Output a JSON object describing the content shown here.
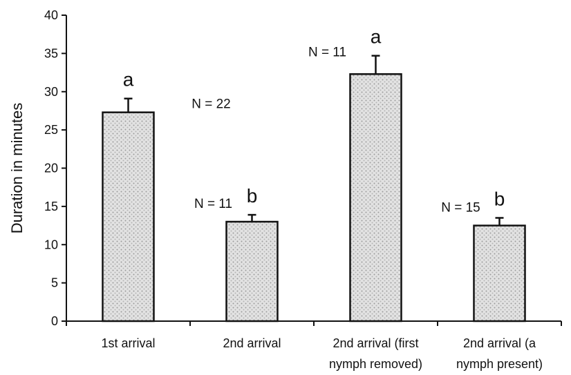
{
  "chart_data": {
    "type": "bar",
    "ylabel": "Duration in minutes",
    "xlabel": "",
    "ylim": [
      0,
      40
    ],
    "yticks": [
      0,
      5,
      10,
      15,
      20,
      25,
      30,
      35,
      40
    ],
    "grid": false,
    "categories": [
      [
        "1st arrival"
      ],
      [
        "2nd arrival"
      ],
      [
        "2nd arrival (first",
        "nymph removed)"
      ],
      [
        "2nd arrival (a",
        "nymph present)"
      ]
    ],
    "values": [
      27.3,
      13.0,
      32.3,
      12.5
    ],
    "error_upper": [
      1.8,
      0.9,
      2.4,
      1.0
    ],
    "sample_sizes": [
      "N = 22",
      "N = 11",
      "N = 11",
      "N = 15"
    ],
    "significance_letters": [
      "a",
      "b",
      "a",
      "b"
    ],
    "bar_fill": "#d4d4d4",
    "bar_stroke": "#111111"
  }
}
